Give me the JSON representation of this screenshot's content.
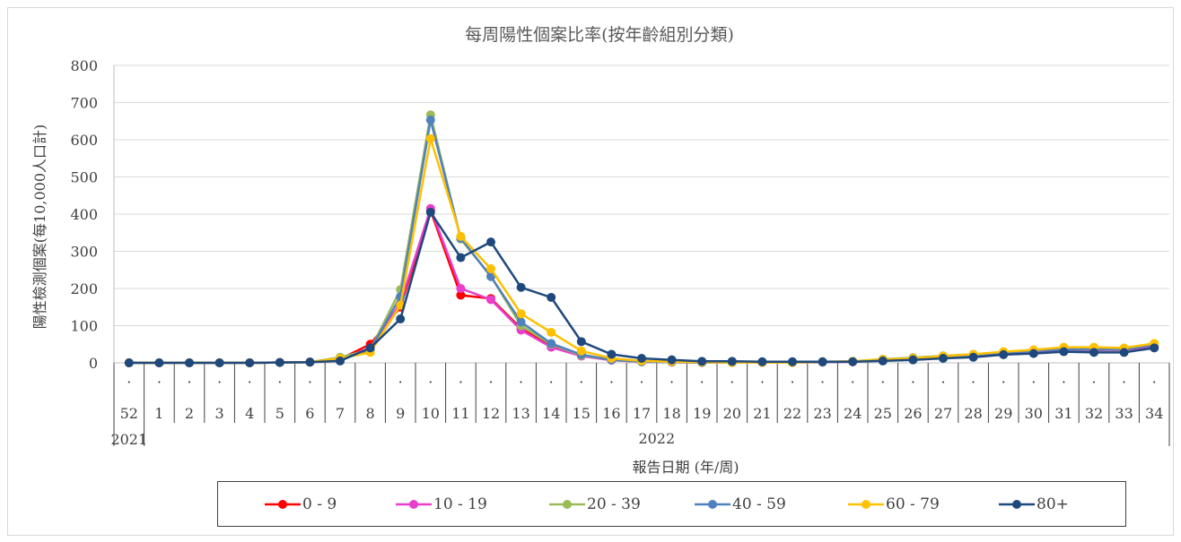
{
  "chart_data": {
    "type": "line",
    "title": "每周陽性個案比率(按年齡組別分類)",
    "xlabel": "報告日期 (年/周)",
    "ylabel": "陽性檢測個案(每10,000人口計)",
    "ylim": [
      0,
      800
    ],
    "yticks": [
      "0",
      "100",
      "200",
      "300",
      "400",
      "500",
      "600",
      "700",
      "800"
    ],
    "categories": [
      "52",
      "1",
      "2",
      "3",
      "4",
      "5",
      "6",
      "7",
      "8",
      "9",
      "10",
      "11",
      "12",
      "13",
      "14",
      "15",
      "16",
      "17",
      "18",
      "19",
      "20",
      "21",
      "22",
      "23",
      "24",
      "25",
      "26",
      "27",
      "28",
      "29",
      "30",
      "31",
      "32",
      "33",
      "34"
    ],
    "category_marker": "·",
    "year_labels": [
      "2021",
      "2022"
    ],
    "grid": true,
    "legend_position": "bottom",
    "series": [
      {
        "name": "0 - 9",
        "color": "#ff0000",
        "values": [
          0,
          0,
          0,
          0,
          0,
          1,
          2,
          10,
          50,
          150,
          410,
          182,
          173,
          92,
          45,
          20,
          8,
          3,
          2,
          1,
          1,
          1,
          1,
          2,
          3,
          8,
          10,
          15,
          20,
          25,
          30,
          35,
          35,
          35,
          45
        ]
      },
      {
        "name": "10 - 19",
        "color": "#e83ecb",
        "values": [
          0,
          0,
          0,
          0,
          0,
          1,
          2,
          10,
          40,
          160,
          415,
          200,
          170,
          88,
          42,
          18,
          7,
          3,
          2,
          1,
          1,
          1,
          1,
          2,
          3,
          8,
          10,
          15,
          20,
          25,
          30,
          35,
          35,
          35,
          45
        ]
      },
      {
        "name": "20 - 39",
        "color": "#9bbb59",
        "values": [
          0,
          0,
          0,
          0,
          0,
          1,
          2,
          15,
          35,
          197,
          667,
          333,
          233,
          100,
          50,
          20,
          8,
          3,
          2,
          1,
          1,
          1,
          1,
          2,
          4,
          10,
          14,
          19,
          23,
          29,
          33,
          38,
          38,
          38,
          50
        ]
      },
      {
        "name": "40 - 59",
        "color": "#4f81bd",
        "values": [
          0,
          0,
          0,
          0,
          0,
          1,
          2,
          10,
          35,
          178,
          653,
          335,
          232,
          110,
          52,
          22,
          8,
          3,
          2,
          1,
          1,
          1,
          1,
          2,
          3,
          8,
          12,
          16,
          20,
          27,
          32,
          36,
          36,
          36,
          48
        ]
      },
      {
        "name": "60 - 79",
        "color": "#ffc000",
        "values": [
          0,
          0,
          0,
          0,
          0,
          1,
          2,
          12,
          28,
          155,
          603,
          340,
          253,
          132,
          82,
          32,
          12,
          5,
          3,
          2,
          1,
          1,
          1,
          3,
          4,
          9,
          12,
          18,
          23,
          30,
          35,
          42,
          42,
          40,
          52
        ]
      },
      {
        "name": "80+",
        "color": "#1f497d",
        "values": [
          0,
          0,
          0,
          0,
          0,
          1,
          2,
          5,
          40,
          118,
          405,
          283,
          325,
          203,
          176,
          57,
          23,
          12,
          8,
          4,
          4,
          3,
          3,
          3,
          3,
          5,
          8,
          12,
          15,
          22,
          25,
          30,
          28,
          28,
          40
        ]
      }
    ]
  }
}
